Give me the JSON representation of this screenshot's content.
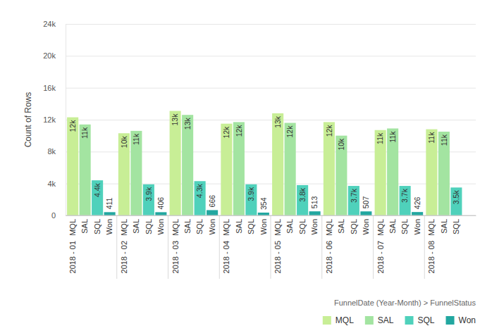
{
  "chart_data": {
    "type": "bar",
    "x_label": "FunnelDate (Year-Month) > FunnelStatus",
    "y_label": "Count of Rows",
    "categories": [
      "2018 - 01",
      "2018 - 02",
      "2018 - 03",
      "2018 - 04",
      "2018 - 05",
      "2018 - 06",
      "2018 - 07",
      "2018 - 08"
    ],
    "series": [
      {
        "name": "MQL",
        "color": "#c8ee96",
        "values": [
          12300,
          10300,
          13100,
          11500,
          12800,
          11700,
          10700,
          10800
        ],
        "value_labels": [
          "12k",
          "10k",
          "13k",
          "12k",
          "13k",
          "12k",
          "11k",
          "11k"
        ]
      },
      {
        "name": "SAL",
        "color": "#a3e4a1",
        "values": [
          11400,
          10600,
          12600,
          11700,
          11600,
          10000,
          10900,
          10500
        ],
        "value_labels": [
          "11k",
          "11k",
          "13k",
          "12k",
          "12k",
          "10k",
          "11k",
          "11k"
        ]
      },
      {
        "name": "SQL",
        "color": "#4fd1bb",
        "values": [
          4400,
          3900,
          4300,
          3900,
          3800,
          3700,
          3700,
          3500
        ],
        "value_labels": [
          "4.4k",
          "3.9k",
          "4.3k",
          "3.9k",
          "3.8k",
          "3.7k",
          "3.7k",
          "3.5k"
        ]
      },
      {
        "name": "Won",
        "color": "#22a7a0",
        "values": [
          411,
          406,
          666,
          354,
          513,
          507,
          426,
          null
        ],
        "value_labels": [
          "411",
          "406",
          "666",
          "354",
          "513",
          "507",
          "426",
          null
        ]
      }
    ],
    "ylim": [
      0,
      24000
    ],
    "yticks": [
      0,
      {
        "value": 4000,
        "label": "4k"
      },
      {
        "value": 8000,
        "label": "8k"
      },
      {
        "value": 12000,
        "label": "12k"
      },
      {
        "value": 16000,
        "label": "16k"
      },
      {
        "value": 20000,
        "label": "20k"
      },
      {
        "value": 24000,
        "label": "24k"
      }
    ],
    "grid": true,
    "data_labels": true,
    "legend": "bottom-right"
  }
}
